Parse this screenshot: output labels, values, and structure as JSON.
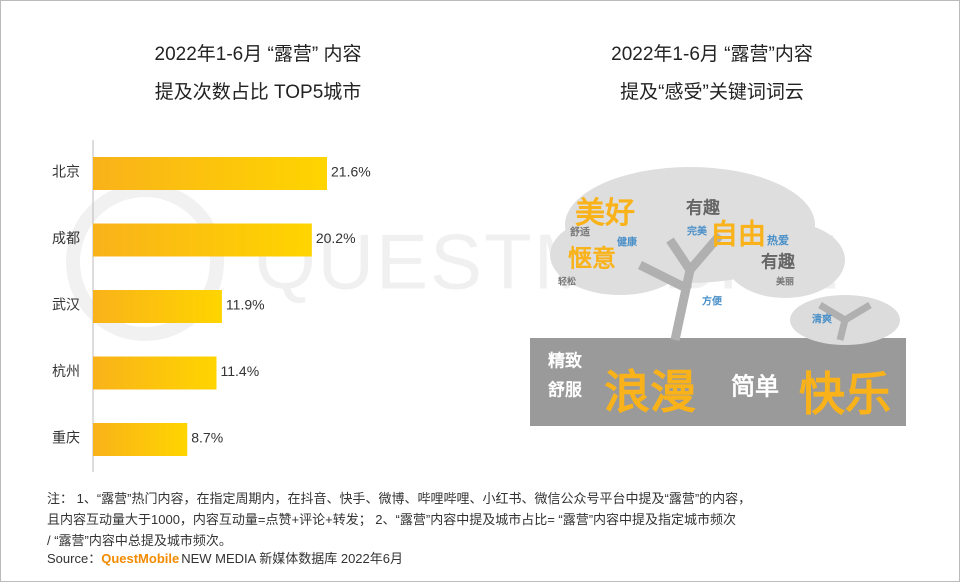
{
  "watermark": "QUESTMOBILE",
  "chart_data": [
    {
      "type": "bar",
      "orientation": "horizontal",
      "title": [
        "2022年1-6月 “露营” 内容",
        "提及次数占比 TOP5城市"
      ],
      "categories": [
        "北京",
        "成都",
        "武汉",
        "杭州",
        "重庆"
      ],
      "values": [
        21.6,
        20.2,
        11.9,
        11.4,
        8.7
      ],
      "value_labels": [
        "21.6%",
        "20.2%",
        "11.9%",
        "11.4%",
        "8.7%"
      ],
      "color": [
        "#f9b21a",
        "#ffd500"
      ]
    },
    {
      "type": "wordcloud",
      "title": [
        "2022年1-6月 “露营”内容",
        "提及“感受”关键词词云"
      ],
      "words": [
        {
          "text": "美好",
          "color": "#f9b21a"
        },
        {
          "text": "有趣",
          "color": "#666666"
        },
        {
          "text": "自由",
          "color": "#f9b21a"
        },
        {
          "text": "完美",
          "color": "#4a90c8"
        },
        {
          "text": "舒适",
          "color": "#777777"
        },
        {
          "text": "健康",
          "color": "#4a90c8"
        },
        {
          "text": "热爱",
          "color": "#4a90c8"
        },
        {
          "text": "惬意",
          "color": "#f9b21a"
        },
        {
          "text": "有趣",
          "color": "#666666"
        },
        {
          "text": "美丽",
          "color": "#777777"
        },
        {
          "text": "轻松",
          "color": "#777777"
        },
        {
          "text": "方便",
          "color": "#4a90c8"
        },
        {
          "text": "清爽",
          "color": "#4a90c8"
        },
        {
          "text": "精致",
          "color": "#ffffff"
        },
        {
          "text": "舒服",
          "color": "#ffffff"
        },
        {
          "text": "浪漫",
          "color": "#f9b21a"
        },
        {
          "text": "简单",
          "color": "#ffffff"
        },
        {
          "text": "快乐",
          "color": "#f9b21a"
        }
      ]
    }
  ],
  "notes": [
    "注： 1、“露营”热门内容，在指定周期内，在抖音、快手、微博、哔哩哔哩、小红书、微信公众号平台中提及“露营”的内容，",
    "且内容互动量大于1000，内容互动量=点赞+评论+转发； 2、“露营”内容中提及城市占比= “露营”内容中提及指定城市频次",
    "/ “露营”内容中总提及城市频次。"
  ],
  "source": {
    "label": "Source：",
    "brand": "QuestMobile",
    "text": "NEW MEDIA 新媒体数据库 2022年6月"
  }
}
